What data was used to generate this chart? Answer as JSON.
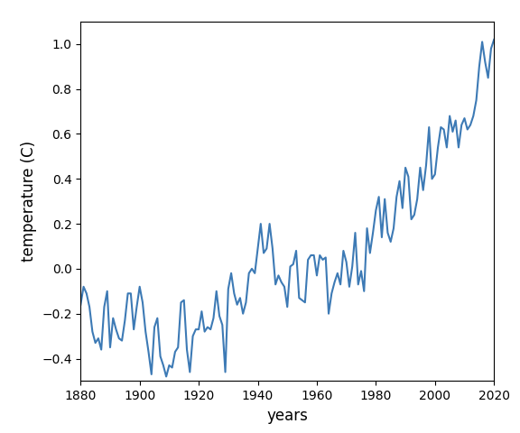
{
  "years": [
    1880,
    1881,
    1882,
    1883,
    1884,
    1885,
    1886,
    1887,
    1888,
    1889,
    1890,
    1891,
    1892,
    1893,
    1894,
    1895,
    1896,
    1897,
    1898,
    1899,
    1900,
    1901,
    1902,
    1903,
    1904,
    1905,
    1906,
    1907,
    1908,
    1909,
    1910,
    1911,
    1912,
    1913,
    1914,
    1915,
    1916,
    1917,
    1918,
    1919,
    1920,
    1921,
    1922,
    1923,
    1924,
    1925,
    1926,
    1927,
    1928,
    1929,
    1930,
    1931,
    1932,
    1933,
    1934,
    1935,
    1936,
    1937,
    1938,
    1939,
    1940,
    1941,
    1942,
    1943,
    1944,
    1945,
    1946,
    1947,
    1948,
    1949,
    1950,
    1951,
    1952,
    1953,
    1954,
    1955,
    1956,
    1957,
    1958,
    1959,
    1960,
    1961,
    1962,
    1963,
    1964,
    1965,
    1966,
    1967,
    1968,
    1969,
    1970,
    1971,
    1972,
    1973,
    1974,
    1975,
    1976,
    1977,
    1978,
    1979,
    1980,
    1981,
    1982,
    1983,
    1984,
    1985,
    1986,
    1987,
    1988,
    1989,
    1990,
    1991,
    1992,
    1993,
    1994,
    1995,
    1996,
    1997,
    1998,
    1999,
    2000,
    2001,
    2002,
    2003,
    2004,
    2005,
    2006,
    2007,
    2008,
    2009,
    2010,
    2011,
    2012,
    2013,
    2014,
    2015,
    2016,
    2017,
    2018,
    2019,
    2020
  ],
  "temp": [
    -0.16,
    -0.08,
    -0.11,
    -0.17,
    -0.28,
    -0.33,
    -0.31,
    -0.36,
    -0.17,
    -0.1,
    -0.35,
    -0.22,
    -0.27,
    -0.31,
    -0.32,
    -0.23,
    -0.11,
    -0.11,
    -0.27,
    -0.17,
    -0.08,
    -0.15,
    -0.28,
    -0.37,
    -0.47,
    -0.26,
    -0.22,
    -0.39,
    -0.43,
    -0.48,
    -0.43,
    -0.44,
    -0.37,
    -0.35,
    -0.15,
    -0.14,
    -0.36,
    -0.46,
    -0.3,
    -0.27,
    -0.27,
    -0.19,
    -0.28,
    -0.26,
    -0.27,
    -0.22,
    -0.1,
    -0.21,
    -0.25,
    -0.46,
    -0.09,
    -0.02,
    -0.11,
    -0.16,
    -0.13,
    -0.2,
    -0.15,
    -0.02,
    -0.0,
    -0.02,
    0.09,
    0.2,
    0.07,
    0.09,
    0.2,
    0.09,
    -0.07,
    -0.03,
    -0.06,
    -0.08,
    -0.17,
    0.01,
    0.02,
    0.08,
    -0.13,
    -0.14,
    -0.15,
    0.04,
    0.06,
    0.06,
    -0.03,
    0.06,
    0.04,
    0.05,
    -0.2,
    -0.11,
    -0.06,
    -0.02,
    -0.07,
    0.08,
    0.03,
    -0.08,
    0.01,
    0.16,
    -0.07,
    -0.01,
    -0.1,
    0.18,
    0.07,
    0.16,
    0.26,
    0.32,
    0.14,
    0.31,
    0.16,
    0.12,
    0.18,
    0.32,
    0.39,
    0.27,
    0.45,
    0.41,
    0.22,
    0.24,
    0.31,
    0.45,
    0.35,
    0.46,
    0.63,
    0.4,
    0.42,
    0.54,
    0.63,
    0.62,
    0.54,
    0.68,
    0.61,
    0.66,
    0.54,
    0.64,
    0.67,
    0.62,
    0.64,
    0.68,
    0.75,
    0.9,
    1.01,
    0.92,
    0.85,
    0.98,
    1.02
  ],
  "line_color": "#3d7ab5",
  "line_width": 1.5,
  "xlabel": "years",
  "ylabel": "temperature (C)",
  "xlim": [
    1880,
    2020
  ],
  "ylim": [
    -0.5,
    1.1
  ],
  "xticks": [
    1880,
    1900,
    1920,
    1940,
    1960,
    1980,
    2000,
    2020
  ],
  "yticks": [
    -0.4,
    -0.2,
    0.0,
    0.2,
    0.4,
    0.6,
    0.8,
    1.0
  ],
  "bg_color": "#ffffff",
  "fig_width": 5.76,
  "fig_height": 4.8,
  "dpi": 100
}
